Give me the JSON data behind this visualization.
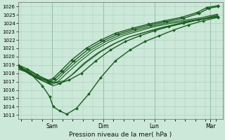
{
  "title": "",
  "xlabel": "Pression niveau de la mer( hPa )",
  "ylabel": "",
  "bg_color": "#cce8d8",
  "grid_color": "#a8cdb8",
  "line_color": "#1a5c20",
  "ylim": [
    1012.5,
    1026.5
  ],
  "yticks": [
    1013,
    1014,
    1015,
    1016,
    1017,
    1018,
    1019,
    1020,
    1021,
    1022,
    1023,
    1024,
    1025,
    1026
  ],
  "xlim": [
    0,
    4.2
  ],
  "day_labels": [
    "Sam",
    "Dim",
    "Lun",
    "Mar"
  ],
  "day_positions": [
    0.7,
    1.75,
    2.8,
    3.95
  ],
  "day_vlines": [
    0.7,
    1.75,
    2.8,
    3.95
  ],
  "series": [
    {
      "x": [
        0.0,
        0.25,
        0.5,
        0.65,
        0.72,
        0.85,
        1.0,
        1.2,
        1.45,
        1.7,
        2.0,
        2.3,
        2.6,
        2.9,
        3.2,
        3.5,
        3.8,
        4.1
      ],
      "y": [
        1018.8,
        1018.0,
        1016.5,
        1015.2,
        1014.0,
        1013.5,
        1013.1,
        1013.8,
        1015.5,
        1017.5,
        1019.5,
        1020.8,
        1021.8,
        1022.5,
        1023.2,
        1023.8,
        1024.3,
        1024.7
      ],
      "marker": "D",
      "markersize": 2.0,
      "linewidth": 1.0
    },
    {
      "x": [
        0.0,
        0.2,
        0.4,
        0.65,
        0.85,
        1.05,
        1.3,
        1.6,
        1.9,
        2.2,
        2.5,
        2.8,
        3.1,
        3.4,
        3.7,
        4.1
      ],
      "y": [
        1019.0,
        1018.5,
        1017.8,
        1017.0,
        1016.8,
        1017.2,
        1018.0,
        1019.5,
        1020.8,
        1021.8,
        1022.5,
        1023.1,
        1023.6,
        1024.0,
        1024.4,
        1024.8
      ],
      "marker": "D",
      "markersize": 2.0,
      "linewidth": 1.0
    },
    {
      "x": [
        0.0,
        0.15,
        0.35,
        0.55,
        0.72,
        0.88,
        1.1,
        1.35,
        1.65,
        1.95,
        2.25,
        2.6,
        2.9,
        3.2,
        3.5,
        3.8,
        4.1
      ],
      "y": [
        1018.5,
        1018.2,
        1017.5,
        1017.0,
        1016.5,
        1016.8,
        1017.8,
        1019.2,
        1020.5,
        1021.5,
        1022.3,
        1022.9,
        1023.4,
        1023.8,
        1024.2,
        1024.5,
        1024.8
      ],
      "marker": null,
      "markersize": 0,
      "linewidth": 0.8
    },
    {
      "x": [
        0.0,
        0.18,
        0.38,
        0.58,
        0.75,
        0.95,
        1.15,
        1.4,
        1.7,
        2.0,
        2.3,
        2.65,
        2.95,
        3.25,
        3.55,
        3.85,
        4.1
      ],
      "y": [
        1018.8,
        1018.4,
        1017.8,
        1017.3,
        1016.9,
        1017.1,
        1018.0,
        1019.3,
        1020.6,
        1021.6,
        1022.4,
        1023.0,
        1023.5,
        1023.9,
        1024.3,
        1024.6,
        1024.9
      ],
      "marker": null,
      "markersize": 0,
      "linewidth": 0.8
    },
    {
      "x": [
        0.0,
        0.12,
        0.3,
        0.5,
        0.68,
        0.82,
        1.0,
        1.25,
        1.55,
        1.85,
        2.15,
        2.5,
        2.8,
        3.15,
        3.5,
        3.82,
        4.1
      ],
      "y": [
        1018.6,
        1018.3,
        1017.7,
        1017.1,
        1016.6,
        1017.0,
        1018.0,
        1019.3,
        1020.7,
        1021.7,
        1022.5,
        1023.1,
        1023.6,
        1024.0,
        1024.3,
        1024.6,
        1025.0
      ],
      "marker": null,
      "markersize": 0,
      "linewidth": 0.8
    },
    {
      "x": [
        0.0,
        0.1,
        0.28,
        0.48,
        0.66,
        0.78,
        0.95,
        1.2,
        1.5,
        1.8,
        2.1,
        2.45,
        2.78,
        3.1,
        3.45,
        3.78,
        4.1
      ],
      "y": [
        1018.7,
        1018.4,
        1017.8,
        1017.2,
        1016.7,
        1017.1,
        1018.1,
        1019.4,
        1020.8,
        1021.8,
        1022.6,
        1023.2,
        1023.7,
        1024.1,
        1024.4,
        1024.7,
        1025.1
      ],
      "marker": null,
      "markersize": 0,
      "linewidth": 0.8
    },
    {
      "x": [
        0.0,
        0.08,
        0.25,
        0.45,
        0.63,
        0.75,
        0.92,
        1.15,
        1.45,
        1.75,
        2.05,
        2.4,
        2.72,
        3.05,
        3.4,
        3.72,
        3.92,
        4.1
      ],
      "y": [
        1018.9,
        1018.6,
        1018.0,
        1017.4,
        1017.0,
        1017.3,
        1018.2,
        1019.5,
        1020.9,
        1021.9,
        1022.7,
        1023.3,
        1023.8,
        1024.2,
        1024.6,
        1025.2,
        1025.8,
        1026.0
      ],
      "marker": "D",
      "markersize": 2.0,
      "linewidth": 1.0
    },
    {
      "x": [
        0.0,
        0.06,
        0.22,
        0.42,
        0.6,
        0.72,
        0.88,
        1.1,
        1.4,
        1.7,
        2.0,
        2.35,
        2.68,
        3.0,
        3.35,
        3.68,
        3.88,
        4.1
      ],
      "y": [
        1019.0,
        1018.7,
        1018.1,
        1017.5,
        1017.1,
        1017.4,
        1018.3,
        1019.6,
        1021.0,
        1022.0,
        1022.8,
        1023.4,
        1023.9,
        1024.3,
        1024.7,
        1025.3,
        1025.9,
        1026.1
      ],
      "marker": "D",
      "markersize": 2.0,
      "linewidth": 1.0
    }
  ]
}
